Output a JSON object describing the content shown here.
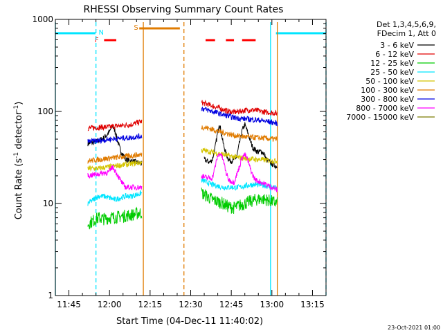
{
  "chart_data": {
    "type": "line",
    "title": "RHESSI Observing Summary Count Rates",
    "xlabel": "Start Time (04-Dec-11 11:40:02)",
    "ylabel": "Count Rate (s⁻¹ detector⁻¹)",
    "ylabel_main": "Count Rate (s",
    "ylabel_sup1": "-1",
    "ylabel_mid": " detector",
    "ylabel_sup2": "-1",
    "ylabel_end": ")",
    "yscale": "log",
    "ylim": [
      1,
      1000
    ],
    "xlim_minutes": [
      0,
      100
    ],
    "x_ticks": [
      {
        "min": 5,
        "label": "11:45"
      },
      {
        "min": 20,
        "label": "12:00"
      },
      {
        "min": 35,
        "label": "12:15"
      },
      {
        "min": 50,
        "label": "12:30"
      },
      {
        "min": 65,
        "label": "12:45"
      },
      {
        "min": 80,
        "label": "13:00"
      },
      {
        "min": 95,
        "label": "13:15"
      }
    ],
    "y_ticks": [
      {
        "value": 1,
        "label": "1"
      },
      {
        "value": 10,
        "label": "10"
      },
      {
        "value": 100,
        "label": "100"
      },
      {
        "value": 1000,
        "label": "1000"
      }
    ],
    "legend_header": [
      "Det 1,3,4,5,6,9,",
      "FDecim 1, Att 0"
    ],
    "legend_position": "right",
    "timestamp": "23-Oct-2021 01:00",
    "flags": {
      "night_label": "N",
      "flare_label": "F",
      "saa_label": "S",
      "night_segments": [
        [
          -2,
          14.8
        ],
        [
          81.5,
          103
        ]
      ],
      "flare_segments": [
        [
          18,
          22.5
        ],
        [
          55.5,
          59
        ],
        [
          63,
          66
        ],
        [
          69,
          74
        ]
      ],
      "saa_segments": [
        [
          31,
          46
        ]
      ]
    },
    "vlines": [
      {
        "min": -1,
        "color": "#00e5ff",
        "dash": false
      },
      {
        "min": 15,
        "color": "#00e5ff",
        "dash": true
      },
      {
        "min": 32.5,
        "color": "#e07b00",
        "dash": false
      },
      {
        "min": 47.5,
        "color": "#e07b00",
        "dash": true
      },
      {
        "min": 79.5,
        "color": "#00e5ff",
        "dash": false
      },
      {
        "min": 82,
        "color": "#e07b00",
        "dash": false
      },
      {
        "min": 101,
        "color": "#00e5ff",
        "dash": true
      }
    ],
    "series": [
      {
        "name": "3 - 6 keV",
        "color": "#000000",
        "points": [
          [
            12,
            45
          ],
          [
            14,
            46
          ],
          [
            16,
            48
          ],
          [
            18,
            52
          ],
          [
            20,
            60
          ],
          [
            21,
            70
          ],
          [
            22,
            62
          ],
          [
            23,
            48
          ],
          [
            24,
            38
          ],
          [
            26,
            30
          ],
          [
            28,
            29
          ],
          [
            30,
            28
          ],
          [
            32,
            27
          ],
          [
            55,
            30
          ],
          [
            56,
            29
          ],
          [
            57,
            28
          ],
          [
            58,
            30
          ],
          [
            59,
            40
          ],
          [
            60,
            60
          ],
          [
            60.5,
            75
          ],
          [
            61,
            65
          ],
          [
            62,
            45
          ],
          [
            63,
            35
          ],
          [
            64,
            30
          ],
          [
            65,
            29
          ],
          [
            66,
            30
          ],
          [
            67,
            32
          ],
          [
            68,
            45
          ],
          [
            69,
            62
          ],
          [
            70,
            72
          ],
          [
            71,
            60
          ],
          [
            72,
            48
          ],
          [
            73,
            40
          ],
          [
            74,
            38
          ],
          [
            75,
            36
          ],
          [
            76,
            37
          ],
          [
            77,
            35
          ],
          [
            78,
            30
          ],
          [
            80,
            27
          ],
          [
            82,
            25
          ]
        ]
      },
      {
        "name": "6 - 12 keV",
        "color": "#e00000",
        "points": [
          [
            12,
            66
          ],
          [
            16,
            67
          ],
          [
            20,
            68
          ],
          [
            24,
            70
          ],
          [
            28,
            72
          ],
          [
            32,
            78
          ],
          [
            54,
            125
          ],
          [
            56,
            120
          ],
          [
            58,
            115
          ],
          [
            60,
            110
          ],
          [
            62,
            105
          ],
          [
            64,
            100
          ],
          [
            66,
            98
          ],
          [
            68,
            100
          ],
          [
            70,
            103
          ],
          [
            72,
            104
          ],
          [
            74,
            103
          ],
          [
            76,
            100
          ],
          [
            78,
            98
          ],
          [
            80,
            97
          ],
          [
            82,
            95
          ]
        ]
      },
      {
        "name": "12 - 25 keV",
        "color": "#00cc00",
        "points": [
          [
            12,
            6
          ],
          [
            14,
            6.5
          ],
          [
            16,
            7
          ],
          [
            18,
            6.8
          ],
          [
            20,
            7
          ],
          [
            24,
            7.2
          ],
          [
            28,
            7.5
          ],
          [
            32,
            8
          ],
          [
            54,
            13
          ],
          [
            56,
            12
          ],
          [
            58,
            11
          ],
          [
            60,
            10.5
          ],
          [
            62,
            10
          ],
          [
            64,
            9.2
          ],
          [
            66,
            9
          ],
          [
            68,
            9.5
          ],
          [
            70,
            10
          ],
          [
            72,
            10.5
          ],
          [
            74,
            11
          ],
          [
            76,
            11.2
          ],
          [
            78,
            11
          ],
          [
            80,
            10.5
          ],
          [
            82,
            10
          ]
        ]
      },
      {
        "name": "25 - 50 keV",
        "color": "#00e5ff",
        "points": [
          [
            12,
            10
          ],
          [
            14,
            11
          ],
          [
            16,
            12
          ],
          [
            18,
            12
          ],
          [
            20,
            11.5
          ],
          [
            22,
            11
          ],
          [
            24,
            11.5
          ],
          [
            26,
            12
          ],
          [
            28,
            12
          ],
          [
            30,
            12.5
          ],
          [
            32,
            13
          ],
          [
            54,
            18
          ],
          [
            56,
            17
          ],
          [
            58,
            16
          ],
          [
            60,
            15.5
          ],
          [
            62,
            15
          ],
          [
            64,
            15
          ],
          [
            66,
            15
          ],
          [
            68,
            15
          ],
          [
            70,
            15.5
          ],
          [
            72,
            16
          ],
          [
            74,
            16
          ],
          [
            76,
            16
          ],
          [
            78,
            15.5
          ],
          [
            80,
            15
          ],
          [
            82,
            14.5
          ]
        ]
      },
      {
        "name": "50 - 100 keV",
        "color": "#d4c400",
        "points": [
          [
            12,
            24
          ],
          [
            16,
            24
          ],
          [
            20,
            25
          ],
          [
            24,
            26
          ],
          [
            28,
            27
          ],
          [
            32,
            28
          ],
          [
            54,
            38
          ],
          [
            56,
            37
          ],
          [
            58,
            36
          ],
          [
            60,
            35
          ],
          [
            62,
            34
          ],
          [
            64,
            33
          ],
          [
            66,
            32
          ],
          [
            68,
            31.5
          ],
          [
            70,
            31
          ],
          [
            72,
            30.5
          ],
          [
            74,
            30
          ],
          [
            76,
            30
          ],
          [
            78,
            29.5
          ],
          [
            80,
            29
          ],
          [
            82,
            29
          ]
        ]
      },
      {
        "name": "100 - 300 keV",
        "color": "#e07b00",
        "points": [
          [
            12,
            29
          ],
          [
            16,
            30
          ],
          [
            20,
            31
          ],
          [
            24,
            32
          ],
          [
            28,
            33
          ],
          [
            32,
            34
          ],
          [
            54,
            68
          ],
          [
            56,
            66
          ],
          [
            58,
            64
          ],
          [
            60,
            61
          ],
          [
            62,
            59
          ],
          [
            64,
            57
          ],
          [
            66,
            55
          ],
          [
            68,
            54
          ],
          [
            70,
            53
          ],
          [
            72,
            52.5
          ],
          [
            74,
            52
          ],
          [
            76,
            51.5
          ],
          [
            78,
            51
          ],
          [
            80,
            50
          ],
          [
            82,
            50
          ]
        ]
      },
      {
        "name": "300 - 800 keV",
        "color": "#0000e0",
        "points": [
          [
            12,
            47
          ],
          [
            16,
            48
          ],
          [
            20,
            50
          ],
          [
            24,
            51
          ],
          [
            28,
            52
          ],
          [
            32,
            54
          ],
          [
            54,
            108
          ],
          [
            56,
            104
          ],
          [
            58,
            100
          ],
          [
            60,
            96
          ],
          [
            62,
            92
          ],
          [
            64,
            89
          ],
          [
            66,
            86
          ],
          [
            68,
            84
          ],
          [
            70,
            83
          ],
          [
            72,
            82
          ],
          [
            74,
            81
          ],
          [
            76,
            80
          ],
          [
            78,
            78
          ],
          [
            80,
            76
          ],
          [
            82,
            74
          ]
        ]
      },
      {
        "name": "800 - 7000 keV",
        "color": "#ff00ff",
        "points": [
          [
            12,
            20
          ],
          [
            16,
            21
          ],
          [
            20,
            22
          ],
          [
            21,
            25
          ],
          [
            22,
            23
          ],
          [
            24,
            18
          ],
          [
            25,
            16
          ],
          [
            26,
            15
          ],
          [
            28,
            15
          ],
          [
            30,
            15
          ],
          [
            32,
            15
          ],
          [
            54,
            20
          ],
          [
            56,
            19
          ],
          [
            58,
            19
          ],
          [
            59,
            25
          ],
          [
            60,
            33
          ],
          [
            61,
            35
          ],
          [
            62,
            30
          ],
          [
            63,
            22
          ],
          [
            64,
            18
          ],
          [
            66,
            17
          ],
          [
            68,
            25
          ],
          [
            69,
            32
          ],
          [
            70,
            34
          ],
          [
            71,
            30
          ],
          [
            72,
            24
          ],
          [
            73,
            20
          ],
          [
            74,
            18
          ],
          [
            76,
            17
          ],
          [
            78,
            16
          ],
          [
            80,
            15
          ],
          [
            82,
            14
          ]
        ]
      },
      {
        "name": "7000 - 15000 keV",
        "color": "#7a7a00",
        "points": []
      }
    ]
  }
}
